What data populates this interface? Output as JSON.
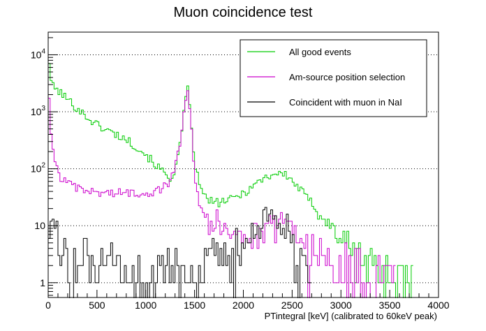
{
  "chart_data": {
    "type": "line",
    "title": "Muon coincidence test",
    "xlabel": "PTintegral [keV] (calibrated to 60keV peak)",
    "ylabel": "",
    "xlim": [
      0,
      4000
    ],
    "ylim": [
      0.55,
      25000
    ],
    "y_scale": "log",
    "grid": "horizontal dotted at major y ticks",
    "legend_position": "top-right",
    "x_tick_labels": [
      "0",
      "500",
      "1000",
      "1500",
      "2000",
      "2500",
      "3000",
      "3500",
      "4000"
    ],
    "y_tick_labels": [
      {
        "value": 1,
        "base": "1",
        "exp": ""
      },
      {
        "value": 10,
        "base": "10",
        "exp": ""
      },
      {
        "value": 100,
        "base": "10",
        "exp": "2"
      },
      {
        "value": 1000,
        "base": "10",
        "exp": "3"
      },
      {
        "value": 10000,
        "base": "10",
        "exp": "4"
      }
    ],
    "series": [
      {
        "name": "All good events",
        "color": "#00cc00",
        "bin_width": 20,
        "keypoints": [
          [
            0,
            13000
          ],
          [
            20,
            4500
          ],
          [
            40,
            2900
          ],
          [
            80,
            2500
          ],
          [
            140,
            2100
          ],
          [
            200,
            1650
          ],
          [
            300,
            1150
          ],
          [
            400,
            800
          ],
          [
            500,
            600
          ],
          [
            600,
            480
          ],
          [
            700,
            400
          ],
          [
            800,
            330
          ],
          [
            900,
            250
          ],
          [
            1000,
            180
          ],
          [
            1100,
            120
          ],
          [
            1200,
            80
          ],
          [
            1250,
            70
          ],
          [
            1300,
            90
          ],
          [
            1350,
            250
          ],
          [
            1400,
            1300
          ],
          [
            1430,
            2500
          ],
          [
            1460,
            800
          ],
          [
            1500,
            140
          ],
          [
            1550,
            50
          ],
          [
            1600,
            33
          ],
          [
            1700,
            25
          ],
          [
            1800,
            27
          ],
          [
            1900,
            30
          ],
          [
            2000,
            38
          ],
          [
            2100,
            50
          ],
          [
            2200,
            68
          ],
          [
            2300,
            80
          ],
          [
            2380,
            85
          ],
          [
            2450,
            75
          ],
          [
            2550,
            50
          ],
          [
            2650,
            32
          ],
          [
            2750,
            20
          ],
          [
            2850,
            12
          ],
          [
            2950,
            8
          ],
          [
            3050,
            5
          ],
          [
            3150,
            3.5
          ],
          [
            3250,
            2.5
          ],
          [
            3350,
            2
          ],
          [
            3450,
            1.5
          ],
          [
            3550,
            1.2
          ],
          [
            3650,
            1
          ],
          [
            3730,
            0.9
          ]
        ]
      },
      {
        "name": "Am-source position selection",
        "color": "#cc00cc",
        "bin_width": 20,
        "keypoints": [
          [
            0,
            3000
          ],
          [
            20,
            900
          ],
          [
            40,
            260
          ],
          [
            60,
            140
          ],
          [
            80,
            120
          ],
          [
            100,
            85
          ],
          [
            150,
            65
          ],
          [
            200,
            55
          ],
          [
            300,
            45
          ],
          [
            400,
            40
          ],
          [
            600,
            38
          ],
          [
            800,
            38
          ],
          [
            1000,
            38
          ],
          [
            1100,
            40
          ],
          [
            1200,
            50
          ],
          [
            1250,
            60
          ],
          [
            1300,
            100
          ],
          [
            1350,
            300
          ],
          [
            1400,
            1500
          ],
          [
            1430,
            2700
          ],
          [
            1460,
            900
          ],
          [
            1500,
            80
          ],
          [
            1550,
            25
          ],
          [
            1600,
            16
          ],
          [
            1700,
            11
          ],
          [
            1800,
            10
          ],
          [
            1900,
            9
          ],
          [
            2000,
            7
          ],
          [
            2100,
            6
          ],
          [
            2200,
            7
          ],
          [
            2300,
            10
          ],
          [
            2380,
            14
          ],
          [
            2450,
            12
          ],
          [
            2550,
            8
          ],
          [
            2650,
            5
          ],
          [
            2750,
            3.5
          ],
          [
            2850,
            2.5
          ],
          [
            2950,
            2
          ],
          [
            3050,
            1.8
          ],
          [
            3150,
            1.5
          ],
          [
            3250,
            1.3
          ],
          [
            3350,
            1.1
          ],
          [
            3450,
            1
          ],
          [
            3550,
            1
          ]
        ]
      },
      {
        "name": "Coincident with muon in NaI",
        "color": "#000000",
        "bin_width": 20,
        "keypoints": [
          [
            0,
            12
          ],
          [
            40,
            10
          ],
          [
            100,
            6
          ],
          [
            150,
            4
          ],
          [
            200,
            3
          ],
          [
            300,
            2.5
          ],
          [
            500,
            2
          ],
          [
            800,
            1.5
          ],
          [
            1000,
            1.5
          ],
          [
            1200,
            1.5
          ],
          [
            1400,
            1.5
          ],
          [
            1600,
            1.7
          ],
          [
            1800,
            2
          ],
          [
            1950,
            3
          ],
          [
            2050,
            5
          ],
          [
            2150,
            9
          ],
          [
            2250,
            13
          ],
          [
            2330,
            14
          ],
          [
            2400,
            12
          ],
          [
            2450,
            8
          ],
          [
            2500,
            4
          ],
          [
            2550,
            2
          ],
          [
            2600,
            1.5
          ],
          [
            2700,
            1
          ]
        ]
      }
    ]
  }
}
